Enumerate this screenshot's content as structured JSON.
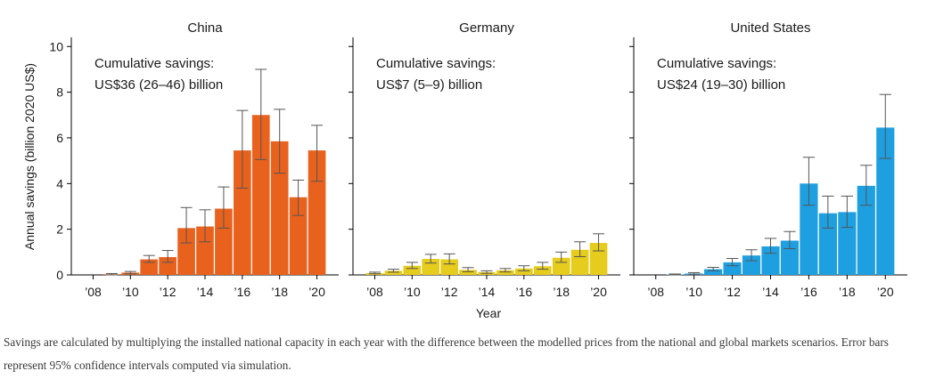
{
  "chart_data": {
    "type": "bar",
    "ylabel": "Annual savings (billion 2020 US$)",
    "xlabel": "Year",
    "ylim": [
      0,
      10.4
    ],
    "yticks": [
      0,
      2,
      4,
      6,
      8,
      10
    ],
    "years": [
      2008,
      2009,
      2010,
      2011,
      2012,
      2013,
      2014,
      2015,
      2016,
      2017,
      2018,
      2019,
      2020
    ],
    "xtick_labels": [
      "’08",
      "’10",
      "’12",
      "’14",
      "’16",
      "’18",
      "’20"
    ],
    "panels": [
      {
        "title": "China",
        "color": "#e8621e",
        "annotation": [
          "Cumulative savings:",
          "US$36 (26–46) billion"
        ],
        "values": [
          0.0,
          0.03,
          0.1,
          0.68,
          0.78,
          2.05,
          2.12,
          2.9,
          5.45,
          7.0,
          5.85,
          3.4,
          5.45
        ],
        "error_low": [
          0.0,
          0.0,
          0.05,
          0.55,
          0.55,
          1.4,
          1.45,
          2.05,
          3.8,
          5.05,
          4.45,
          2.6,
          4.1
        ],
        "error_high": [
          0.0,
          0.06,
          0.15,
          0.85,
          1.07,
          2.95,
          2.85,
          3.85,
          7.2,
          9.0,
          7.25,
          4.15,
          6.55
        ]
      },
      {
        "title": "Germany",
        "color": "#e6cc1d",
        "annotation": [
          "Cumulative savings:",
          "US$7 (5–9) billion"
        ],
        "values": [
          0.08,
          0.18,
          0.4,
          0.7,
          0.68,
          0.22,
          0.12,
          0.2,
          0.28,
          0.38,
          0.75,
          1.1,
          1.4
        ],
        "error_low": [
          0.05,
          0.12,
          0.28,
          0.52,
          0.48,
          0.14,
          0.07,
          0.13,
          0.18,
          0.25,
          0.55,
          0.8,
          1.05
        ],
        "error_high": [
          0.12,
          0.25,
          0.55,
          0.9,
          0.92,
          0.32,
          0.18,
          0.28,
          0.4,
          0.55,
          1.0,
          1.45,
          1.8
        ]
      },
      {
        "title": "United States",
        "color": "#1e9fe0",
        "annotation": [
          "Cumulative savings:",
          "US$24 (19–30) billion"
        ],
        "values": [
          0.0,
          0.02,
          0.06,
          0.25,
          0.55,
          0.85,
          1.25,
          1.5,
          4.0,
          2.7,
          2.75,
          3.9,
          6.45
        ],
        "error_low": [
          0.0,
          0.0,
          0.03,
          0.18,
          0.4,
          0.62,
          0.95,
          1.15,
          3.05,
          2.05,
          2.08,
          3.05,
          5.1
        ],
        "error_high": [
          0.0,
          0.04,
          0.1,
          0.33,
          0.72,
          1.1,
          1.6,
          1.9,
          5.15,
          3.45,
          3.45,
          4.8,
          7.9
        ]
      }
    ]
  },
  "caption": "Savings are calculated by multiplying the installed national capacity in each year with the difference between the modelled prices from the national and global markets scenarios. Error bars represent 95% confidence intervals computed via simulation."
}
